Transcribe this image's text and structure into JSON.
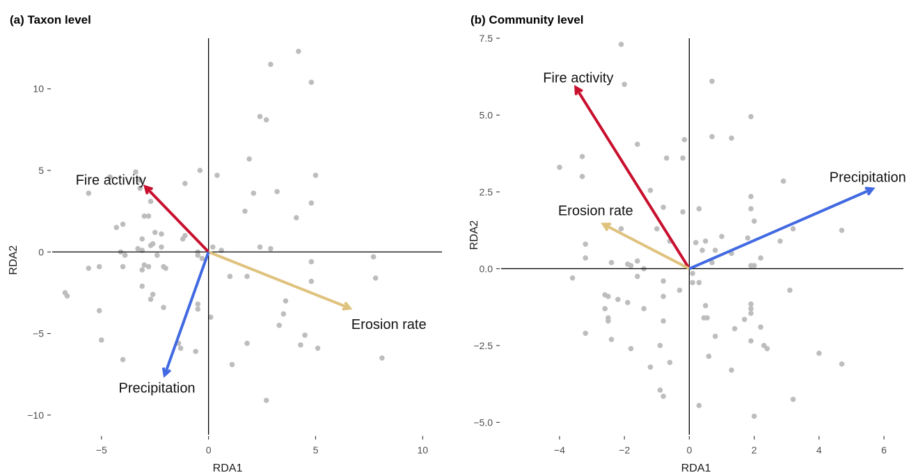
{
  "chart_data": [
    {
      "type": "scatter",
      "title": "(a) Taxon level",
      "xlabel": "RDA1",
      "ylabel": "RDA2",
      "xlim": [
        -7.3,
        10.9
      ],
      "ylim": [
        -11.2,
        13.1
      ],
      "xticks": [
        -5,
        0,
        5,
        10
      ],
      "xtick_labels": [
        "−5",
        "0",
        "5",
        "10"
      ],
      "yticks": [
        -10,
        -5,
        0,
        5,
        10
      ],
      "ytick_labels": [
        "−10",
        "−5",
        "0",
        "5",
        "10"
      ],
      "grid": false,
      "point_color": "#bdbdbd",
      "points": [
        [
          4.2,
          12.3
        ],
        [
          2.9,
          11.5
        ],
        [
          4.8,
          10.4
        ],
        [
          2.4,
          8.3
        ],
        [
          2.7,
          8.1
        ],
        [
          1.9,
          5.7
        ],
        [
          0.4,
          4.7
        ],
        [
          5.0,
          4.7
        ],
        [
          -0.4,
          5.0
        ],
        [
          -3.4,
          4.9
        ],
        [
          -4.6,
          4.6
        ],
        [
          -1.1,
          4.2
        ],
        [
          -3.2,
          4.4
        ],
        [
          -3.2,
          3.9
        ],
        [
          -5.6,
          3.6
        ],
        [
          3.2,
          3.7
        ],
        [
          2.1,
          3.6
        ],
        [
          4.8,
          3.0
        ],
        [
          1.7,
          2.5
        ],
        [
          4.1,
          2.1
        ],
        [
          -2.7,
          3.1
        ],
        [
          -3.0,
          2.2
        ],
        [
          -2.8,
          2.2
        ],
        [
          -4.0,
          1.7
        ],
        [
          -4.3,
          1.5
        ],
        [
          -2.5,
          1.2
        ],
        [
          -2.2,
          1.1
        ],
        [
          -1.2,
          0.8
        ],
        [
          -1.1,
          1.0
        ],
        [
          -3.1,
          0.8
        ],
        [
          -2.7,
          0.4
        ],
        [
          -2.6,
          0.5
        ],
        [
          -3.3,
          0.2
        ],
        [
          -3.1,
          0.1
        ],
        [
          -2.2,
          0.3
        ],
        [
          -0.5,
          0.0
        ],
        [
          0.2,
          0.3
        ],
        [
          0.6,
          0.1
        ],
        [
          2.9,
          0.2
        ],
        [
          2.4,
          0.3
        ],
        [
          -4.1,
          0.0
        ],
        [
          -3.9,
          -0.2
        ],
        [
          -2.4,
          -0.2
        ],
        [
          -0.5,
          -0.2
        ],
        [
          -0.3,
          -0.4
        ],
        [
          -5.6,
          -1.0
        ],
        [
          -5.1,
          -0.9
        ],
        [
          -4.0,
          -0.9
        ],
        [
          -3.0,
          -0.8
        ],
        [
          -2.8,
          -0.9
        ],
        [
          -2.1,
          -0.9
        ],
        [
          -3.1,
          -1.1
        ],
        [
          -2.0,
          -1.0
        ],
        [
          1.0,
          -1.5
        ],
        [
          1.8,
          -1.5
        ],
        [
          4.8,
          -1.8
        ],
        [
          7.7,
          -0.3
        ],
        [
          7.8,
          -1.6
        ],
        [
          4.8,
          -0.6
        ],
        [
          -3.1,
          -2.1
        ],
        [
          -2.6,
          -2.6
        ],
        [
          -6.7,
          -2.5
        ],
        [
          -6.6,
          -2.7
        ],
        [
          -2.7,
          -2.9
        ],
        [
          -2.1,
          -3.4
        ],
        [
          -0.5,
          -3.2
        ],
        [
          -0.5,
          -3.5
        ],
        [
          3.6,
          -3.0
        ],
        [
          3.5,
          -3.8
        ],
        [
          0.1,
          -4.0
        ],
        [
          3.3,
          -4.5
        ],
        [
          -5.1,
          -3.6
        ],
        [
          -5.0,
          -5.4
        ],
        [
          -1.4,
          -5.6
        ],
        [
          -1.3,
          -5.9
        ],
        [
          1.8,
          -5.6
        ],
        [
          4.5,
          -5.1
        ],
        [
          4.3,
          -5.7
        ],
        [
          5.1,
          -5.9
        ],
        [
          -0.6,
          -6.1
        ],
        [
          1.1,
          -6.9
        ],
        [
          8.1,
          -6.5
        ],
        [
          -4.0,
          -6.6
        ],
        [
          2.7,
          -9.1
        ]
      ],
      "vectors": [
        {
          "label": "Fire activity",
          "x": -2.95,
          "y": 4.0,
          "color": "#c8102e"
        },
        {
          "label": "Erosion rate",
          "x": 6.6,
          "y": -3.45,
          "color": "#dfc27d"
        },
        {
          "label": "Precipitation",
          "x": -2.05,
          "y": -7.55,
          "color": "#4169e1"
        }
      ]
    },
    {
      "type": "scatter",
      "title": "(b) Community level",
      "xlabel": "RDA1",
      "ylabel": "RDA2",
      "xlim": [
        -5.8,
        6.6
      ],
      "ylim": [
        -5.4,
        7.5
      ],
      "xticks": [
        -4,
        -2,
        0,
        2,
        4,
        6
      ],
      "xtick_labels": [
        "−4",
        "−2",
        "0",
        "2",
        "4",
        "6"
      ],
      "yticks": [
        -5,
        -2.5,
        0,
        2.5,
        5,
        7.5
      ],
      "ytick_labels": [
        "−5.0",
        "−2.5",
        "0.0",
        "2.5",
        "5.0",
        "7.5"
      ],
      "grid": false,
      "point_color": "#bdbdbd",
      "points": [
        [
          -2.1,
          7.3
        ],
        [
          -2.0,
          6.0
        ],
        [
          0.7,
          6.1
        ],
        [
          1.9,
          4.95
        ],
        [
          -1.6,
          4.05
        ],
        [
          0.7,
          4.3
        ],
        [
          1.3,
          4.25
        ],
        [
          -0.15,
          4.2
        ],
        [
          -0.7,
          3.6
        ],
        [
          -0.2,
          3.6
        ],
        [
          -4.0,
          3.3
        ],
        [
          -3.3,
          3.65
        ],
        [
          -3.3,
          3.0
        ],
        [
          2.9,
          2.85
        ],
        [
          -1.2,
          2.55
        ],
        [
          -0.8,
          2.0
        ],
        [
          1.9,
          2.35
        ],
        [
          1.9,
          1.95
        ],
        [
          0.3,
          1.95
        ],
        [
          -0.2,
          1.85
        ],
        [
          2.0,
          1.55
        ],
        [
          1.0,
          1.05
        ],
        [
          0.5,
          0.9
        ],
        [
          1.8,
          1.0
        ],
        [
          2.8,
          0.9
        ],
        [
          3.2,
          1.3
        ],
        [
          4.7,
          1.25
        ],
        [
          -1.0,
          1.3
        ],
        [
          -2.1,
          1.3
        ],
        [
          -0.6,
          0.9
        ],
        [
          0.2,
          0.85
        ],
        [
          0.4,
          0.6
        ],
        [
          0.8,
          0.6
        ],
        [
          1.3,
          0.5
        ],
        [
          -3.2,
          0.8
        ],
        [
          -3.2,
          0.35
        ],
        [
          -2.4,
          0.2
        ],
        [
          -1.6,
          0.25
        ],
        [
          -1.8,
          0.1
        ],
        [
          -1.4,
          0.0
        ],
        [
          -1.9,
          0.15
        ],
        [
          1.9,
          0.1
        ],
        [
          2.0,
          0.1
        ],
        [
          2.2,
          0.35
        ],
        [
          0.1,
          -0.15
        ],
        [
          0.7,
          0.2
        ],
        [
          -3.6,
          -0.3
        ],
        [
          -1.6,
          -0.25
        ],
        [
          -0.8,
          -0.4
        ],
        [
          0.1,
          -0.45
        ],
        [
          0.3,
          -0.45
        ],
        [
          -0.3,
          -0.7
        ],
        [
          -0.8,
          -0.9
        ],
        [
          -2.6,
          -0.85
        ],
        [
          -2.5,
          -0.9
        ],
        [
          -2.2,
          -1.0
        ],
        [
          -1.9,
          -1.1
        ],
        [
          0.5,
          -1.2
        ],
        [
          1.9,
          -1.15
        ],
        [
          1.9,
          -1.3
        ],
        [
          3.1,
          -0.7
        ],
        [
          -2.6,
          -1.3
        ],
        [
          -1.4,
          -1.3
        ],
        [
          0.45,
          -1.6
        ],
        [
          0.55,
          -1.6
        ],
        [
          1.9,
          -1.45
        ],
        [
          1.7,
          -1.65
        ],
        [
          2.2,
          -1.9
        ],
        [
          1.4,
          -1.95
        ],
        [
          -2.5,
          -1.7
        ],
        [
          -2.5,
          -1.6
        ],
        [
          -0.8,
          -1.7
        ],
        [
          -3.2,
          -2.1
        ],
        [
          -2.4,
          -2.3
        ],
        [
          -1.8,
          -2.6
        ],
        [
          -0.9,
          -2.5
        ],
        [
          0.8,
          -2.2
        ],
        [
          1.9,
          -2.35
        ],
        [
          2.3,
          -2.5
        ],
        [
          2.4,
          -2.6
        ],
        [
          0.6,
          -2.85
        ],
        [
          -1.2,
          -3.2
        ],
        [
          -0.6,
          -3.05
        ],
        [
          1.3,
          -3.3
        ],
        [
          4.0,
          -2.75
        ],
        [
          4.7,
          -3.1
        ],
        [
          -0.9,
          -3.95
        ],
        [
          -0.8,
          -4.15
        ],
        [
          3.2,
          -4.25
        ],
        [
          0.3,
          -4.45
        ],
        [
          2.0,
          -4.8
        ]
      ],
      "vectors": [
        {
          "label": "Fire activity",
          "x": -3.5,
          "y": 5.9,
          "color": "#c8102e"
        },
        {
          "label": "Erosion rate",
          "x": -2.65,
          "y": 1.45,
          "color": "#dfc27d"
        },
        {
          "label": "Precipitation",
          "x": 5.65,
          "y": 2.6,
          "color": "#4169e1"
        }
      ]
    }
  ]
}
